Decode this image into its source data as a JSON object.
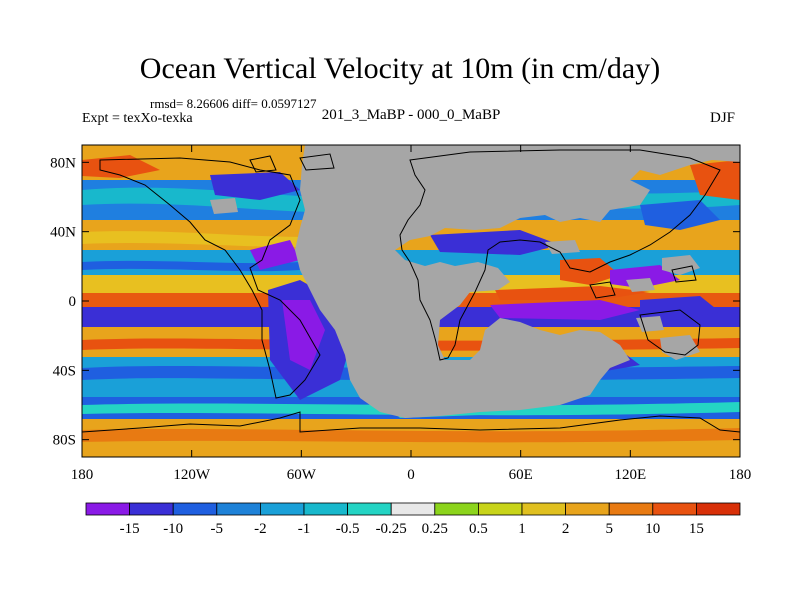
{
  "chart_data": {
    "type": "heatmap",
    "title": "Ocean Vertical Velocity at 10m (in cm/day)",
    "stats": {
      "rmsd": "8.26606",
      "diff": "0.0597127",
      "line": "rmsd= 8.26606 diff= 0.0597127"
    },
    "experiment_label": "Expt = texXo-texka",
    "period_label": "201_3_MaBP - 000_0_MaBP",
    "season": "DJF",
    "x_axis": {
      "range": [
        -180,
        180
      ],
      "ticks": [
        -180,
        -120,
        -60,
        0,
        60,
        120,
        180
      ],
      "tick_labels": [
        "180",
        "120W",
        "60W",
        "0",
        "60E",
        "120E",
        "180"
      ]
    },
    "y_axis": {
      "range": [
        -90,
        90
      ],
      "ticks": [
        80,
        40,
        0,
        -40,
        -80
      ],
      "tick_labels": [
        "80N",
        "40N",
        "0",
        "40S",
        "80S"
      ]
    },
    "colorbar": {
      "boundaries": [
        "-15",
        "-10",
        "-5",
        "-2",
        "-1",
        "-0.5",
        "-0.25",
        "0.25",
        "0.5",
        "1",
        "2",
        "5",
        "10",
        "15"
      ],
      "colors": [
        "#8a1ae6",
        "#3a2fd6",
        "#1f5fe0",
        "#1e82d8",
        "#1aa0d8",
        "#18b8cc",
        "#24d4c4",
        "#e8e8e8",
        "#8cd41c",
        "#c8d41a",
        "#e0c020",
        "#e8a41c",
        "#e87a12",
        "#e85210",
        "#d83008"
      ]
    },
    "land_color": "#a6a6a6"
  }
}
